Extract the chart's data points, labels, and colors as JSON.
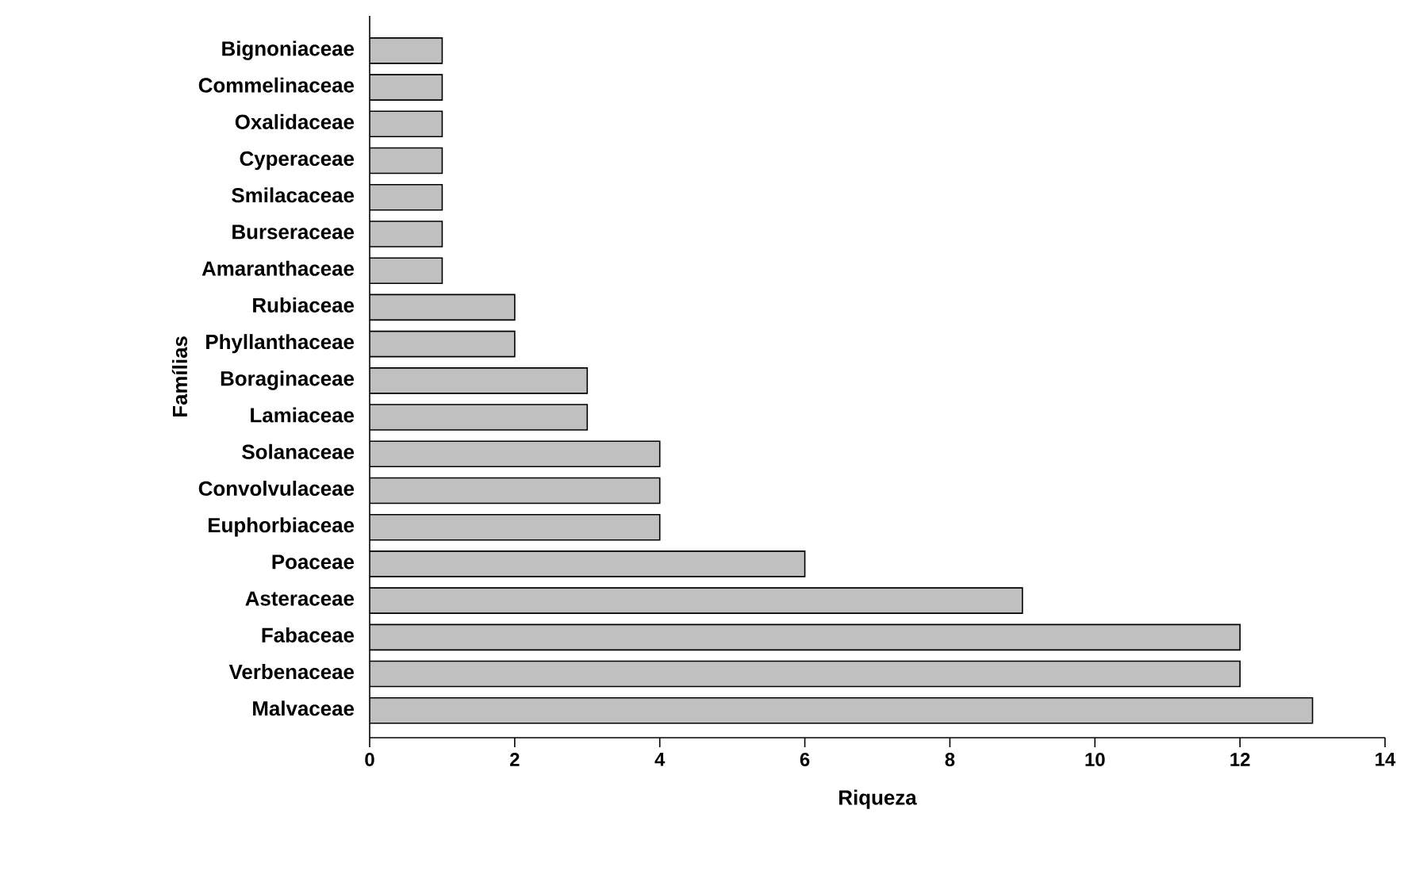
{
  "chart_data": {
    "type": "bar",
    "orientation": "horizontal",
    "xlabel": "Riqueza",
    "ylabel": "Famílias",
    "categories": [
      "Bignoniaceae",
      "Commelinaceae",
      "Oxalidaceae",
      "Cyperaceae",
      "Smilacaceae",
      "Burseraceae",
      "Amaranthaceae",
      "Rubiaceae",
      "Phyllanthaceae",
      "Boraginaceae",
      "Lamiaceae",
      "Solanaceae",
      "Convolvulaceae",
      "Euphorbiaceae",
      "Poaceae",
      "Asteraceae",
      "Fabaceae",
      "Verbenaceae",
      "Malvaceae"
    ],
    "values": [
      1,
      1,
      1,
      1,
      1,
      1,
      1,
      2,
      2,
      3,
      3,
      4,
      4,
      4,
      6,
      9,
      12,
      12,
      13
    ],
    "color": "#c0c0c0",
    "xlim": [
      0,
      14
    ],
    "xticks": [
      0,
      2,
      4,
      6,
      8,
      10,
      12,
      14
    ]
  }
}
